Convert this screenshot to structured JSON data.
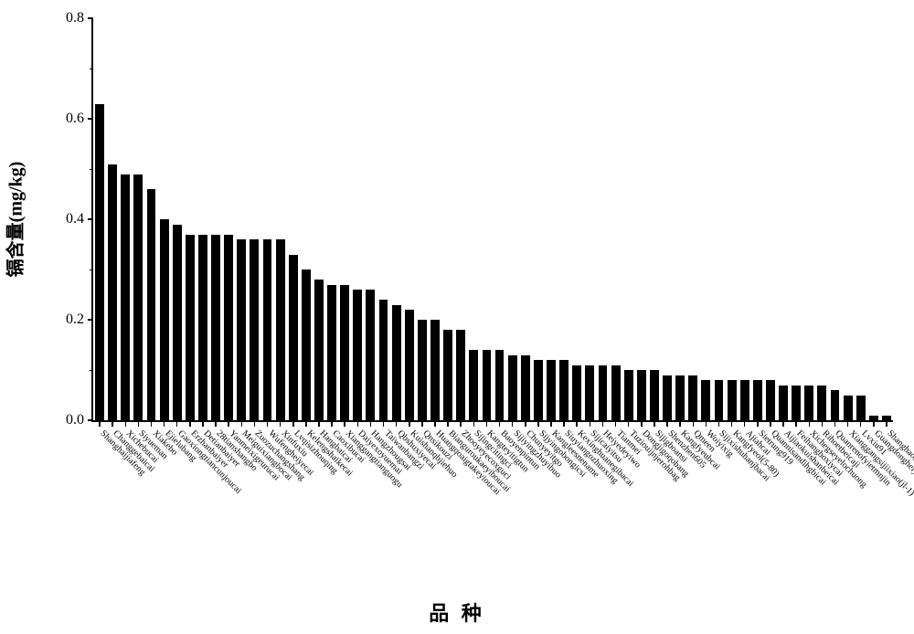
{
  "chart": {
    "type": "bar",
    "ylabel": "镉含量(mg/kg)",
    "xlabel": "品 种",
    "ylim": [
      0,
      0.8
    ],
    "ytick_step": 0.2,
    "y_minor_step": 0.1,
    "background_color": "#ffffff",
    "bar_color": "#000000",
    "axis_color": "#000000",
    "label_fontsize": 20,
    "tick_fontsize": 16,
    "bar_label_fontsize": 10,
    "bar_width_ratio": 0.7,
    "categories": [
      "Shanghaijiafeng",
      "Changgebaicai",
      "Xichebucai",
      "Siyueman",
      "Xiakebo",
      "Ejielubang",
      "Gaoxiongtiancunjoucai",
      "Erzhanbaiyer",
      "Detianbaiyer",
      "28tianshangbo",
      "Yanmeixigeurucai",
      "Meiguixiangbocai",
      "Zuozuchangshang",
      "Wufengheiyecai",
      "Xinfuxiu",
      "Lvqisizhouqing",
      "Kelengshaikecai",
      "Hangbaicai",
      "Caoxibucai",
      "Xianggangtianguogu",
      "Daiyexoyuemai",
      "Hangzhougsai",
      "Taiwanbangzi",
      "Qbshuxiyecai",
      "Kuishanqbjiehuo",
      "Qnsikouzi",
      "Huangqoaigtakeyioucai",
      "Bianguroukaeyiboucai",
      "Zhooyeyecoxguci",
      "Sijingcitingci",
      "Kangteyitigtun",
      "Baoyenpintun",
      "Sijiyingzhuyibuo",
      "Chunyeyitgo",
      "Sijyingobongicsi",
      "Kangleesnename",
      "Siuyiangozhuoxing",
      "Kexinghuanegibacai",
      "Sijicaiyitsu",
      "Heiyedeyiwo",
      "Tianmei",
      "Tuziouijnjerohbag",
      "Dongjigoqobang",
      "Sijigboansi",
      "Shenzhen605",
      "Kangfyeubcai",
      "Qmeen",
      "Woiyixig",
      "Sijixishuhanjbacai",
      "Kangfyeol(5-80)",
      "Ajiahcai",
      "Sietrung919",
      "Quannisandihgbicai",
      "Aijiaokuishanbeicai",
      "Feihangboxiycai",
      "Xichegseyelochuong",
      "Rihoetbeicaji",
      "Quanrenofyietmnjin",
      "Xianggangsijiixiao(jl-1)",
      "Lvxiu91",
      "Guangdongheiyeouaihcsi",
      "Shanghaoting"
    ],
    "values": [
      0.63,
      0.51,
      0.49,
      0.49,
      0.46,
      0.4,
      0.39,
      0.37,
      0.37,
      0.37,
      0.37,
      0.36,
      0.36,
      0.36,
      0.36,
      0.33,
      0.3,
      0.28,
      0.27,
      0.27,
      0.26,
      0.26,
      0.24,
      0.23,
      0.22,
      0.2,
      0.2,
      0.18,
      0.18,
      0.14,
      0.14,
      0.14,
      0.13,
      0.13,
      0.12,
      0.12,
      0.12,
      0.11,
      0.11,
      0.11,
      0.11,
      0.1,
      0.1,
      0.1,
      0.09,
      0.09,
      0.09,
      0.08,
      0.08,
      0.08,
      0.08,
      0.08,
      0.08,
      0.07,
      0.07,
      0.07,
      0.07,
      0.06,
      0.05,
      0.05,
      0.01,
      0.01
    ]
  }
}
